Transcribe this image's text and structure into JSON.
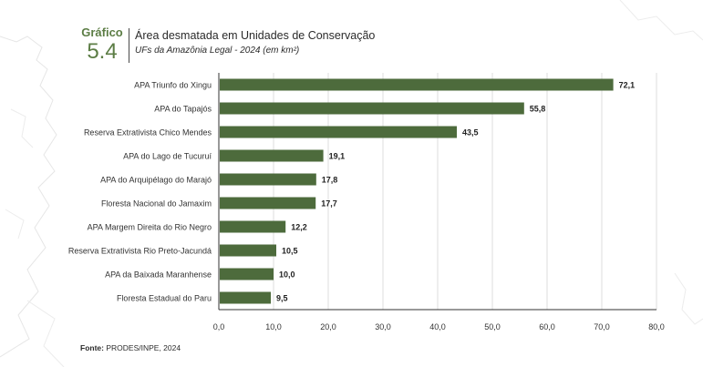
{
  "header": {
    "label": "Gráfico",
    "number": "5.4",
    "title": "Área desmatada em Unidades de Conservação",
    "subtitle": "UFs da Amazônia Legal - 2024 (em km²)"
  },
  "source": {
    "label": "Fonte:",
    "text": "PRODES/INPE, 2024"
  },
  "colors": {
    "bar": "#4d6b3c",
    "accent": "#5c7d45",
    "grid": "#dcdcdc",
    "axis": "#333333"
  },
  "chart_data": {
    "type": "bar",
    "orientation": "horizontal",
    "categories": [
      "APA Triunfo do Xingu",
      "APA do Tapajós",
      "Reserva Extrativista Chico Mendes",
      "APA do Lago de Tucuruí",
      "APA do Arquipélago do Marajó",
      "Floresta Nacional do Jamaxim",
      "APA Margem Direita do Rio Negro",
      "Reserva Extrativista Rio Preto-Jacundá",
      "APA da Baixada Maranhense",
      "Floresta Estadual do Paru"
    ],
    "values": [
      72.1,
      55.8,
      43.5,
      19.1,
      17.8,
      17.7,
      12.2,
      10.5,
      10.0,
      9.5
    ],
    "value_labels": [
      "72,1",
      "55,8",
      "43,5",
      "19,1",
      "17,8",
      "17,7",
      "12,2",
      "10,5",
      "10,0",
      "9,5"
    ],
    "xlim": [
      0,
      80
    ],
    "xticks": [
      0,
      10,
      20,
      30,
      40,
      50,
      60,
      70,
      80
    ],
    "xtick_labels": [
      "0,0",
      "10,0",
      "20,0",
      "30,0",
      "40,0",
      "50,0",
      "60,0",
      "70,0",
      "80,0"
    ],
    "grid": true,
    "title": "Área desmatada em Unidades de Conservação",
    "xlabel": "",
    "ylabel": ""
  }
}
